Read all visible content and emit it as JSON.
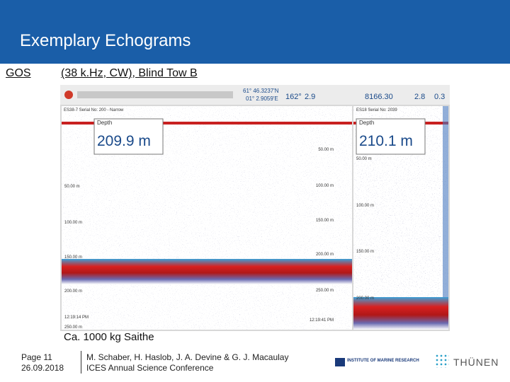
{
  "header": {
    "title": "Exemplary Echograms"
  },
  "subtitle": {
    "label": "GOS",
    "text": "(38 k.Hz, CW), Blind Tow B"
  },
  "echogram": {
    "toolbar": [
      "61° 46.3237'N",
      "01° 2.9059'E",
      "162°",
      "2.9",
      "8166.30",
      "2.8",
      "0.3"
    ],
    "left": {
      "name": "ES38-7 Serial No: 200 - Narrow",
      "field": "Depth",
      "depth": "209.9 m",
      "labels": [
        "50.00 m",
        "100.00 m",
        "150.00 m",
        "200.00 m",
        "250.00 m"
      ],
      "times": [
        "12:19:14 PM",
        "12:19:41 PM"
      ]
    },
    "right": {
      "name": "ES18 Serial No: 2039",
      "field": "Depth",
      "depth": "210.1 m",
      "labels": [
        "50.00 m",
        "100.00 m",
        "150.00 m",
        "200.00 m"
      ]
    }
  },
  "caption": "Ca. 1000 kg Saithe",
  "footer": {
    "page": "Page 11",
    "date": "26.09.2018",
    "authors": "M. Schaber, H. Haslob, J. A. Devine & G. J. Macaulay",
    "conference": "ICES Annual Science Conference",
    "logos": [
      "INSTITUTE OF MARINE RESEARCH",
      "THÜNEN"
    ]
  }
}
